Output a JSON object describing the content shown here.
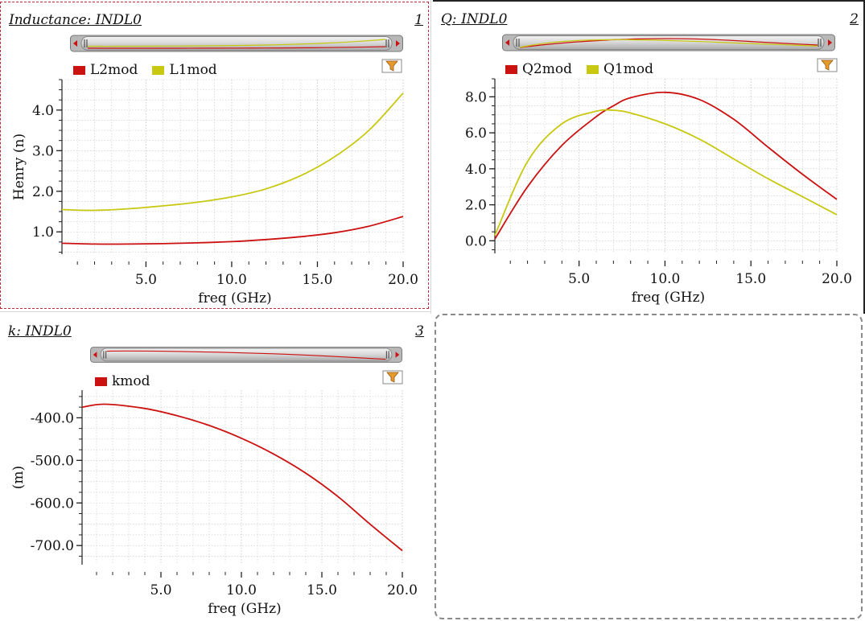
{
  "panels": [
    {
      "number": "1",
      "title": "Inductance: INDL0"
    },
    {
      "number": "2",
      "title": "Q: INDL0"
    },
    {
      "number": "3",
      "title": "k: INDL0"
    }
  ],
  "chart_data": [
    {
      "type": "line",
      "title": "Inductance: INDL0",
      "xlabel": "freq (GHz)",
      "ylabel": "Henry (n)",
      "xlim": [
        0.1,
        20.0
      ],
      "ylim": [
        0.45,
        4.75
      ],
      "xticks": [
        "5.0",
        "10.0",
        "15.0",
        "20.0"
      ],
      "yticks": [
        "1.0",
        "2.0",
        "3.0",
        "4.0"
      ],
      "legend": "top-left",
      "grid": true,
      "x": [
        0.1,
        2,
        4,
        6,
        8,
        10,
        12,
        14,
        16,
        18,
        20
      ],
      "series": [
        {
          "name": "L2mod",
          "color": "#cc1111",
          "values": [
            0.72,
            0.7,
            0.7,
            0.71,
            0.73,
            0.76,
            0.81,
            0.88,
            0.98,
            1.14,
            1.38
          ]
        },
        {
          "name": "L1mod",
          "color": "#c8c810",
          "values": [
            1.55,
            1.53,
            1.57,
            1.64,
            1.73,
            1.86,
            2.06,
            2.38,
            2.85,
            3.5,
            4.42
          ]
        }
      ]
    },
    {
      "type": "line",
      "title": "Q: INDL0",
      "xlabel": "freq (GHz)",
      "ylabel": "",
      "xlim": [
        0.1,
        20.0
      ],
      "ylim": [
        -0.7,
        9.0
      ],
      "xticks": [
        "5.0",
        "10.0",
        "15.0",
        "20.0"
      ],
      "yticks": [
        "0.0",
        "2.0",
        "4.0",
        "6.0",
        "8.0"
      ],
      "legend": "top-left",
      "grid": true,
      "x": [
        0.1,
        2,
        4,
        6,
        7,
        8,
        10,
        12,
        14,
        16,
        18,
        20
      ],
      "series": [
        {
          "name": "Q2mod",
          "color": "#cc1111",
          "values": [
            0.1,
            3.0,
            5.3,
            6.9,
            7.5,
            7.95,
            8.25,
            7.85,
            6.75,
            5.2,
            3.7,
            2.3
          ]
        },
        {
          "name": "Q1mod",
          "color": "#c8c810",
          "values": [
            0.3,
            4.4,
            6.5,
            7.2,
            7.25,
            7.1,
            6.5,
            5.65,
            4.55,
            3.45,
            2.45,
            1.45
          ]
        }
      ]
    },
    {
      "type": "line",
      "title": "k: INDL0",
      "xlabel": "freq (GHz)",
      "ylabel": "(m)",
      "xlim": [
        0.1,
        20.0
      ],
      "ylim": [
        -745,
        -335
      ],
      "xticks": [
        "5.0",
        "10.0",
        "15.0",
        "20.0"
      ],
      "yticks": [
        "-400.0",
        "-500.0",
        "-600.0",
        "-700.0"
      ],
      "legend": "top-left",
      "grid": true,
      "x": [
        0.1,
        1.5,
        4,
        6,
        8,
        10,
        12,
        14,
        16,
        18,
        20
      ],
      "series": [
        {
          "name": "kmod",
          "color": "#cc1111",
          "values": [
            -375,
            -368,
            -378,
            -395,
            -418,
            -448,
            -485,
            -530,
            -585,
            -650,
            -712
          ]
        }
      ]
    }
  ]
}
